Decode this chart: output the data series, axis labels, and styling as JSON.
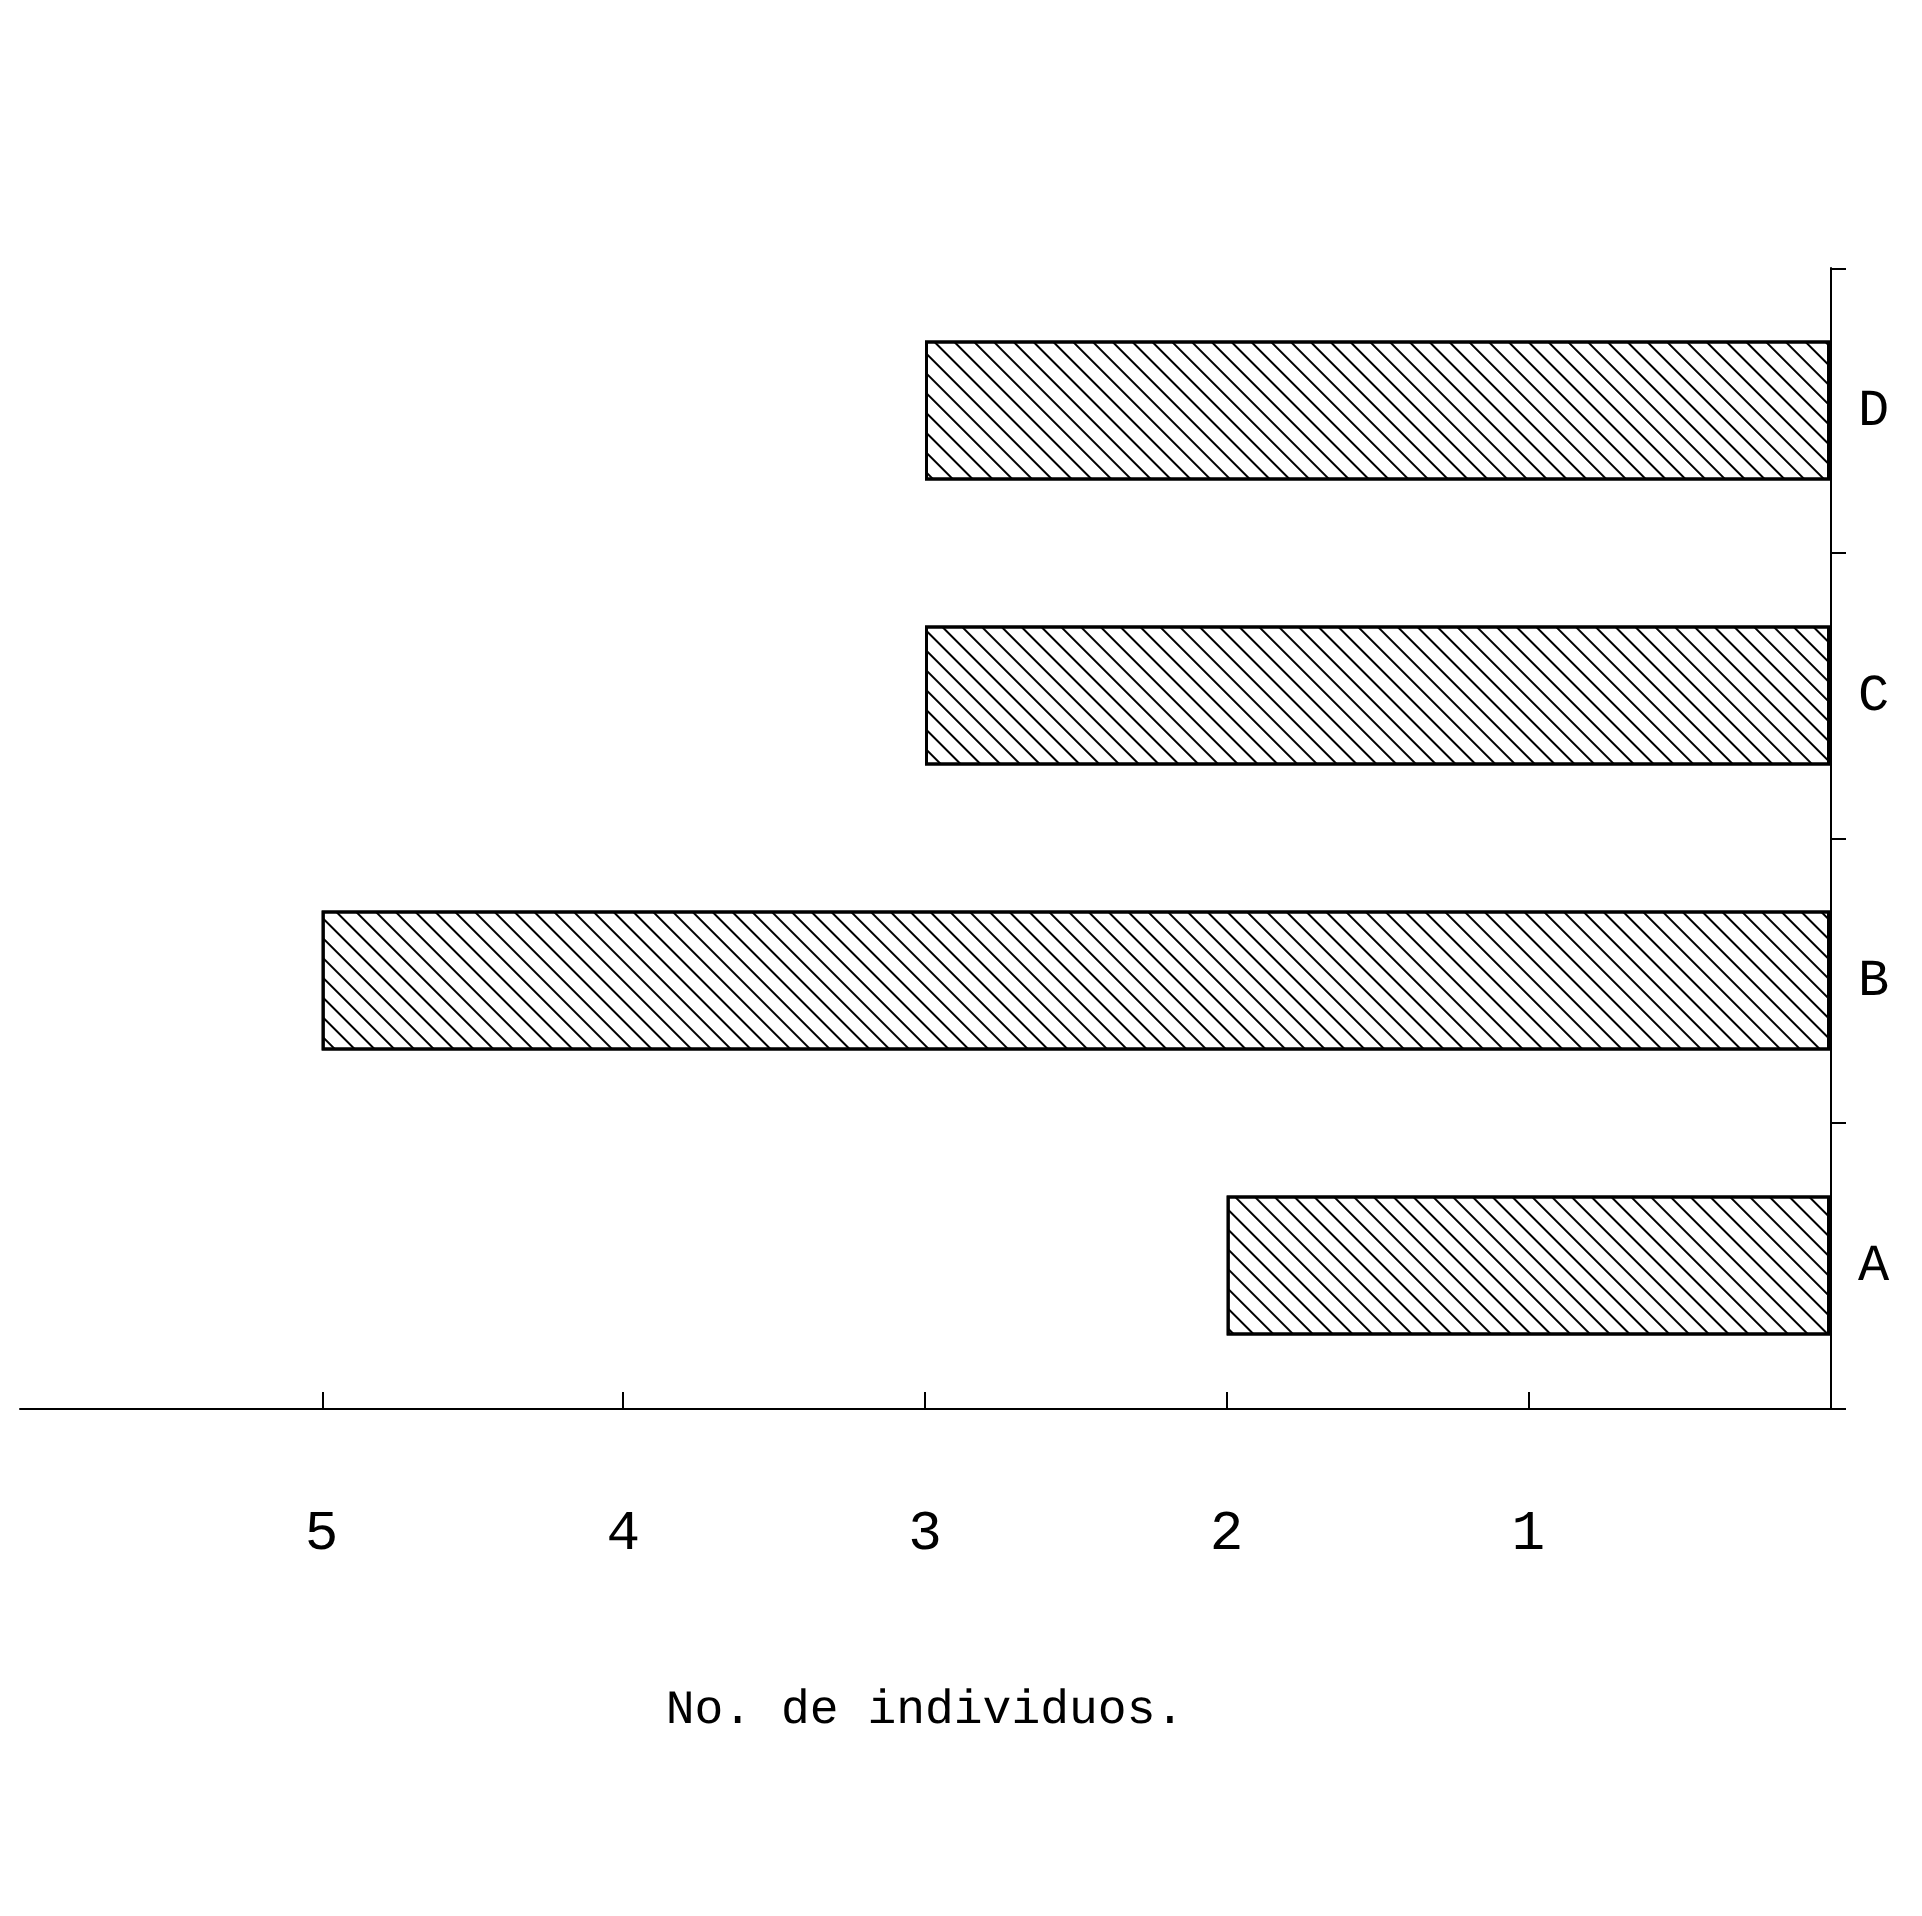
{
  "chart_data": {
    "type": "bar",
    "orientation": "horizontal",
    "xlabel": "No. de individuos.",
    "categories": [
      "D",
      "C",
      "B",
      "A"
    ],
    "values": [
      3,
      3,
      5,
      2
    ],
    "color": "#000000",
    "xlim": [
      6,
      0
    ],
    "xticks": [
      1,
      2,
      3,
      4,
      5
    ],
    "grid": false
  }
}
